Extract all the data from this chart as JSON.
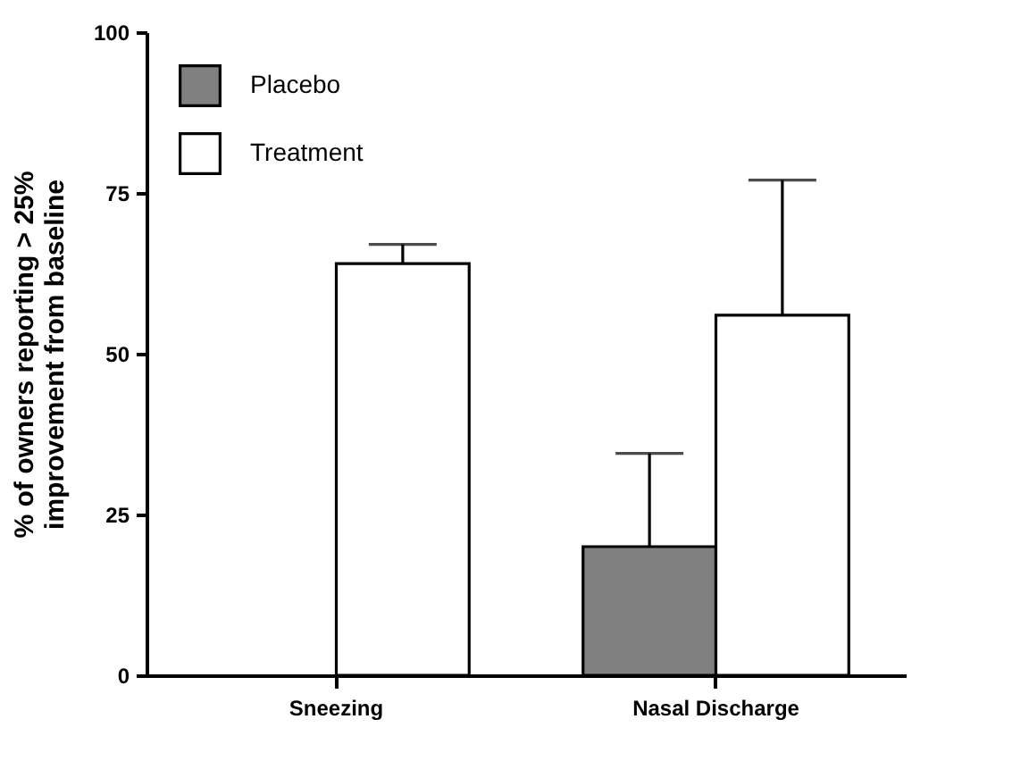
{
  "chart_data": {
    "type": "bar",
    "ylabel": "% of owners reporting > 25%\nimprovement from baseline",
    "categories": [
      "Sneezing",
      "Nasal Discharge"
    ],
    "series": [
      {
        "name": "Placebo",
        "color": "#808080",
        "values": [
          0,
          20
        ],
        "errors": [
          null,
          [
            20,
            34.5
          ]
        ]
      },
      {
        "name": "Treatment",
        "color": "#ffffff",
        "values": [
          64,
          56
        ],
        "errors": [
          [
            64,
            67
          ],
          [
            56,
            77
          ]
        ]
      }
    ],
    "ylim": [
      0,
      100
    ],
    "yticks": [
      0,
      25,
      50,
      75,
      100
    ],
    "grid": false,
    "legend": "top left"
  }
}
